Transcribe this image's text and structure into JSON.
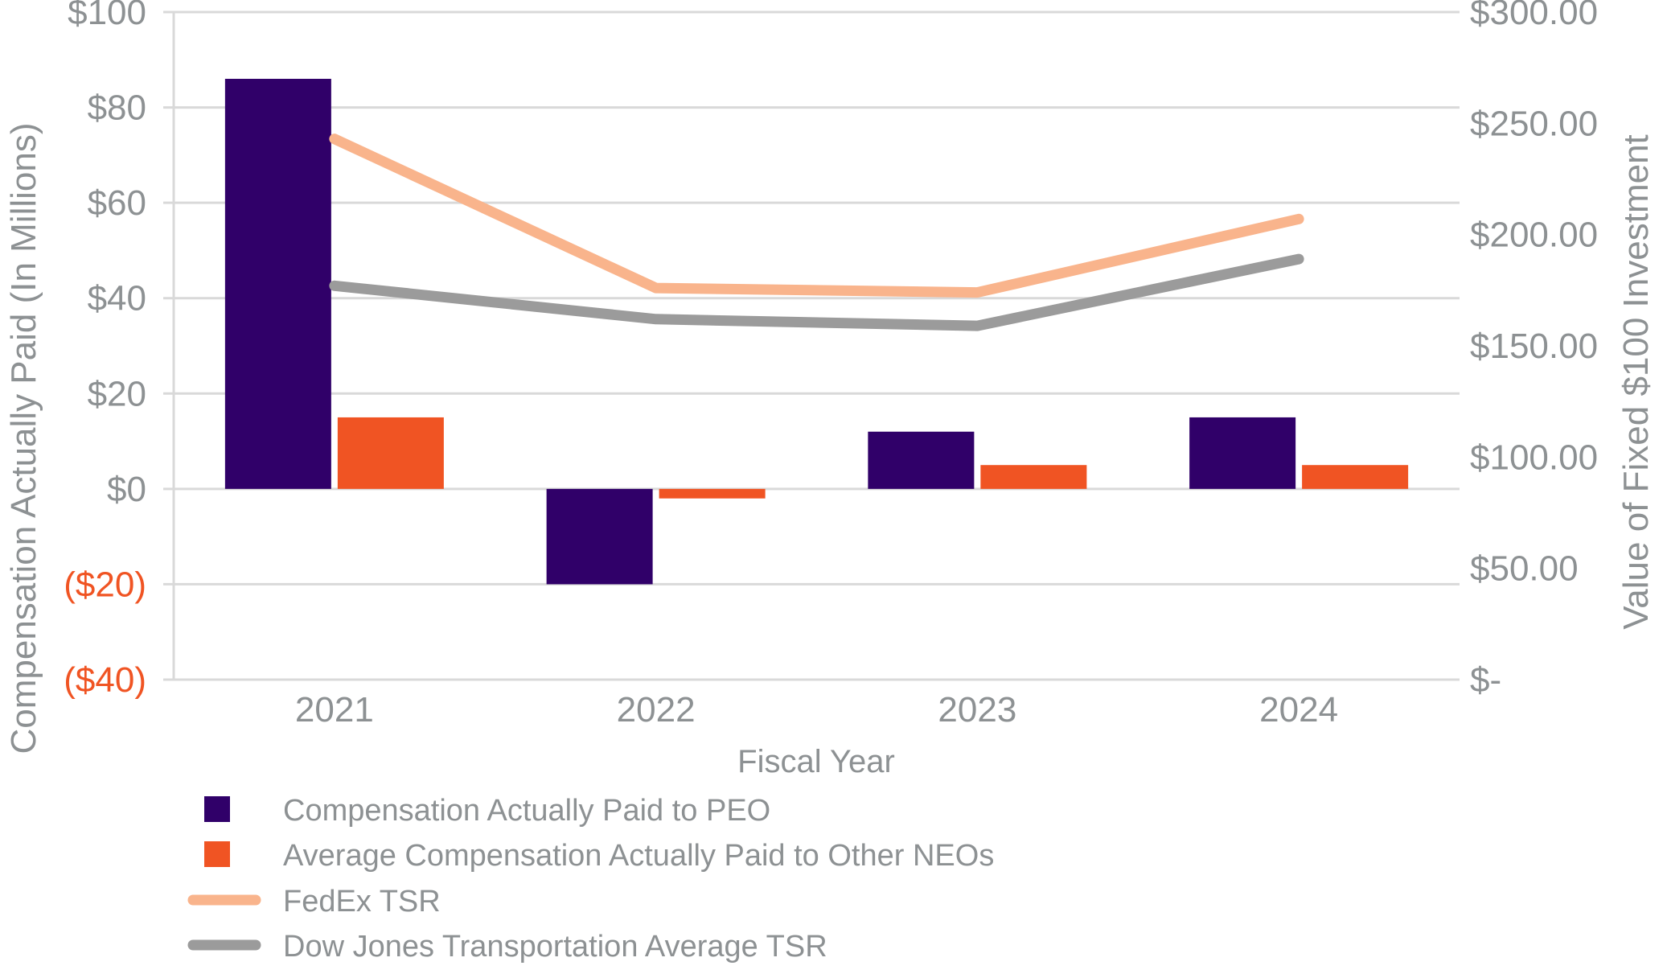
{
  "chart_data": {
    "type": "combo",
    "title": "",
    "categories": [
      "2021",
      "2022",
      "2023",
      "2024"
    ],
    "xlabel": "Fiscal Year",
    "grid": true,
    "legend_position": "bottom-left",
    "left_axis": {
      "title": "Compensation Actually Paid (In Millions)",
      "range": [
        -40,
        100
      ],
      "ticks": [
        {
          "label": "$100",
          "value": 100
        },
        {
          "label": "$80",
          "value": 80
        },
        {
          "label": "$60",
          "value": 60
        },
        {
          "label": "$40",
          "value": 40
        },
        {
          "label": "$20",
          "value": 20
        },
        {
          "label": "$0",
          "value": 0
        },
        {
          "label": "($20)",
          "value": -20
        },
        {
          "label": "($40)",
          "value": -40
        }
      ]
    },
    "right_axis": {
      "title": "Value of Fixed $100 Investment",
      "range": [
        0,
        300
      ],
      "ticks": [
        {
          "label": "$300.00",
          "value": 300
        },
        {
          "label": "$250.00",
          "value": 250
        },
        {
          "label": "$200.00",
          "value": 200
        },
        {
          "label": "$150.00",
          "value": 150
        },
        {
          "label": "$100.00",
          "value": 100
        },
        {
          "label": "$50.00",
          "value": 50
        },
        {
          "label": "$-",
          "value": 0
        }
      ]
    },
    "series": [
      {
        "name": "Compensation Actually Paid to PEO",
        "type": "bar",
        "axis": "left",
        "color": "#300069",
        "values": [
          86,
          -20,
          12,
          15
        ]
      },
      {
        "name": "Average Compensation Actually Paid to Other NEOs",
        "type": "bar",
        "axis": "left",
        "color": "#F05423",
        "values": [
          15,
          -2,
          5,
          5
        ]
      },
      {
        "name": "FedEx TSR",
        "type": "line",
        "axis": "right",
        "color": "#F9B48C",
        "values": [
          243,
          176,
          174,
          207
        ]
      },
      {
        "name": "Dow Jones Transportation Average TSR",
        "type": "line",
        "axis": "right",
        "color": "#9B9B9B",
        "values": [
          177,
          162,
          159,
          189
        ]
      }
    ]
  },
  "styles": {
    "background": "#FFFFFF",
    "text_color": "#8D9193",
    "grid_color": "#D9D9D9",
    "axis_line_color": "#D9D9D9",
    "negative_tick_color": "#F05423"
  }
}
